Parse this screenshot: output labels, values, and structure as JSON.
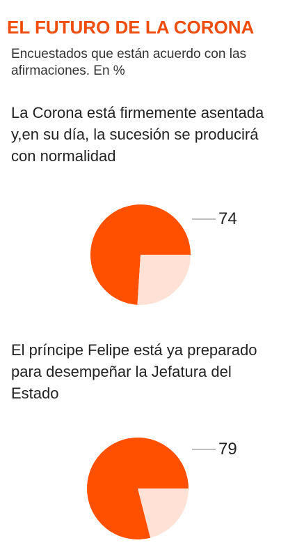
{
  "title": "EL FUTURO DE LA CORONA",
  "subtitle": "Encuestados que están acuerdo con las afirmaciones. En %",
  "colors": {
    "title": "#ee4d0d",
    "pie_main": "#ff5000",
    "pie_rest": "#ffe1d5",
    "leader": "#aaaaaa"
  },
  "chart_data": [
    {
      "type": "pie",
      "title": "La Corona está firmemente asentada y,en su día, la sucesión se producirá con normalidad",
      "values": [
        74,
        26
      ],
      "data_label": "74"
    },
    {
      "type": "pie",
      "title": "El príncipe Felipe está ya preparado para desempeñar la Jefatura del Estado",
      "values": [
        79,
        21
      ],
      "data_label": "79"
    }
  ]
}
